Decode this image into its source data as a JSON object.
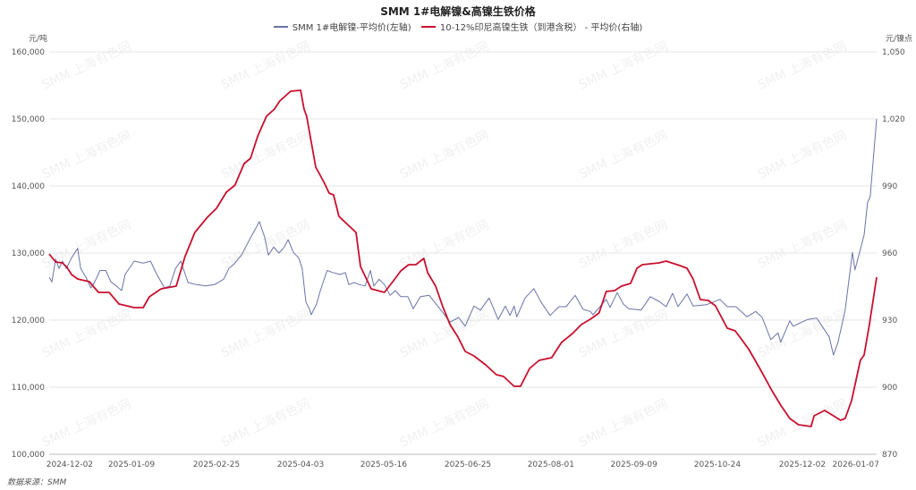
{
  "chart_data": {
    "type": "line",
    "title": "SMM 1#电解镍&高镍生铁价格",
    "source": "数据来源：SMM",
    "watermark": "SMM 上海有色网",
    "y_left": {
      "unit": "元/吨",
      "range": [
        100000,
        160000
      ],
      "ticks": [
        "100,000",
        "110,000",
        "120,000",
        "130,000",
        "140,000",
        "150,000",
        "160,000"
      ]
    },
    "y_right": {
      "unit": "元/镍点",
      "range": [
        870,
        1050
      ],
      "ticks": [
        "870",
        "900",
        "930",
        "960",
        "990",
        "1,020",
        "1,050"
      ]
    },
    "x_range": [
      0,
      218.2
    ],
    "x_ticks": [
      {
        "x": 5.4,
        "label": "2024-12-02"
      },
      {
        "x": 21.7,
        "label": "2025-01-09"
      },
      {
        "x": 44.1,
        "label": "2025-02-25"
      },
      {
        "x": 66.3,
        "label": "2025-04-03"
      },
      {
        "x": 88.2,
        "label": "2025-05-16"
      },
      {
        "x": 110.4,
        "label": "2025-06-25"
      },
      {
        "x": 132.3,
        "label": "2025-08-01"
      },
      {
        "x": 154.2,
        "label": "2025-09-09"
      },
      {
        "x": 176.2,
        "label": "2025-10-24"
      },
      {
        "x": 198.6,
        "label": "2025-12-02"
      },
      {
        "x": 212.7,
        "label": "2026-01-07"
      }
    ],
    "grid": true,
    "legend_position": "top-center",
    "series": [
      {
        "name": "SMM 1#电解镍-平均价(左轴)",
        "axis": "left",
        "color": "#6b72a8",
        "points": [
          [
            0,
            126400
          ],
          [
            0.7,
            125700
          ],
          [
            1.7,
            129100
          ],
          [
            2.6,
            127700
          ],
          [
            3.5,
            128800
          ],
          [
            4.5,
            127700
          ],
          [
            5.9,
            129300
          ],
          [
            7.5,
            130700
          ],
          [
            8.3,
            127700
          ],
          [
            9.7,
            126400
          ],
          [
            11,
            124800
          ],
          [
            12,
            125700
          ],
          [
            13.4,
            127400
          ],
          [
            14.9,
            127400
          ],
          [
            16.3,
            125700
          ],
          [
            17.7,
            125100
          ],
          [
            19.1,
            124400
          ],
          [
            20,
            126800
          ],
          [
            22.4,
            128800
          ],
          [
            24.8,
            128500
          ],
          [
            26.7,
            128800
          ],
          [
            28.5,
            126700
          ],
          [
            30.4,
            124800
          ],
          [
            31.8,
            125100
          ],
          [
            33.3,
            127700
          ],
          [
            34.7,
            128800
          ],
          [
            36.6,
            125600
          ],
          [
            38.9,
            125300
          ],
          [
            41.3,
            125100
          ],
          [
            43.6,
            125300
          ],
          [
            46,
            126100
          ],
          [
            47.4,
            127700
          ],
          [
            48.8,
            128400
          ],
          [
            50.7,
            129700
          ],
          [
            53.1,
            132300
          ],
          [
            54.5,
            133700
          ],
          [
            55.4,
            134700
          ],
          [
            56.8,
            132400
          ],
          [
            57.8,
            129700
          ],
          [
            59.2,
            130900
          ],
          [
            60.6,
            130000
          ],
          [
            62,
            130900
          ],
          [
            63,
            132000
          ],
          [
            64.4,
            130100
          ],
          [
            65.8,
            129300
          ],
          [
            66.7,
            127700
          ],
          [
            67.7,
            122700
          ],
          [
            68.6,
            121700
          ],
          [
            69.1,
            120800
          ],
          [
            70.5,
            122400
          ],
          [
            71.5,
            124400
          ],
          [
            73.3,
            127400
          ],
          [
            74.8,
            127100
          ],
          [
            76.7,
            126800
          ],
          [
            78.1,
            127100
          ],
          [
            79,
            125300
          ],
          [
            80.4,
            125600
          ],
          [
            81.8,
            125300
          ],
          [
            83.3,
            125100
          ],
          [
            84.7,
            127400
          ],
          [
            85.6,
            125100
          ],
          [
            87,
            126100
          ],
          [
            88.4,
            125300
          ],
          [
            89.9,
            123700
          ],
          [
            91.3,
            124400
          ],
          [
            92.7,
            123500
          ],
          [
            94.6,
            123500
          ],
          [
            96,
            121700
          ],
          [
            97.9,
            123500
          ],
          [
            100.2,
            123700
          ],
          [
            103.3,
            121500
          ],
          [
            105.7,
            119700
          ],
          [
            108,
            120400
          ],
          [
            109.7,
            119100
          ],
          [
            112,
            122100
          ],
          [
            113.7,
            121500
          ],
          [
            116,
            123300
          ],
          [
            118.4,
            120100
          ],
          [
            120.3,
            122100
          ],
          [
            121.5,
            120700
          ],
          [
            122.6,
            122100
          ],
          [
            123.3,
            120500
          ],
          [
            125.5,
            123300
          ],
          [
            127.8,
            124700
          ],
          [
            129.7,
            122700
          ],
          [
            132.1,
            120700
          ],
          [
            134.4,
            122000
          ],
          [
            136.3,
            122000
          ],
          [
            138.7,
            123700
          ],
          [
            140.8,
            121600
          ],
          [
            142.7,
            121300
          ],
          [
            143.4,
            120800
          ],
          [
            146.9,
            123100
          ],
          [
            147.9,
            121900
          ],
          [
            149.8,
            124100
          ],
          [
            151.4,
            122400
          ],
          [
            152.8,
            121700
          ],
          [
            156.1,
            121500
          ],
          [
            158.5,
            123500
          ],
          [
            160.8,
            122800
          ],
          [
            162.7,
            122000
          ],
          [
            164.4,
            124000
          ],
          [
            165.8,
            122000
          ],
          [
            168.2,
            123900
          ],
          [
            169.8,
            122100
          ],
          [
            173.3,
            122300
          ],
          [
            176.9,
            123100
          ],
          [
            178.8,
            122000
          ],
          [
            181.1,
            122000
          ],
          [
            184,
            120500
          ],
          [
            186.3,
            121300
          ],
          [
            188,
            120400
          ],
          [
            190.3,
            117100
          ],
          [
            192.2,
            118100
          ],
          [
            192.9,
            116700
          ],
          [
            195.3,
            119900
          ],
          [
            196.2,
            119100
          ],
          [
            200,
            120100
          ],
          [
            202.4,
            120300
          ],
          [
            205.7,
            117500
          ],
          [
            206.8,
            114800
          ],
          [
            208,
            116700
          ],
          [
            209.9,
            121500
          ],
          [
            211.8,
            130100
          ],
          [
            212.5,
            127500
          ],
          [
            214.9,
            132700
          ],
          [
            215.8,
            137500
          ],
          [
            216.5,
            138400
          ],
          [
            218.2,
            150000
          ]
        ]
      },
      {
        "name": "10-12%印尼高镍生铁（到港含税） - 平均价(右轴)",
        "axis": "right",
        "color": "#c8102e",
        "points": [
          [
            0,
            959.6
          ],
          [
            1.7,
            956
          ],
          [
            3.5,
            955.6
          ],
          [
            4.7,
            953.6
          ],
          [
            5.9,
            950.4
          ],
          [
            7.5,
            948.4
          ],
          [
            10.6,
            947.2
          ],
          [
            13,
            942.4
          ],
          [
            15.8,
            942.4
          ],
          [
            18.4,
            937.2
          ],
          [
            22.4,
            935.6
          ],
          [
            24.8,
            935.6
          ],
          [
            26.4,
            940.4
          ],
          [
            29.5,
            944
          ],
          [
            33.5,
            945.2
          ],
          [
            35.8,
            958.4
          ],
          [
            38.4,
            969.2
          ],
          [
            41.7,
            976
          ],
          [
            44.1,
            980
          ],
          [
            46.7,
            987.2
          ],
          [
            49,
            990.4
          ],
          [
            51.4,
            1000
          ],
          [
            53.1,
            1002.4
          ],
          [
            55,
            1012.4
          ],
          [
            57.3,
            1021.2
          ],
          [
            59.4,
            1024.4
          ],
          [
            60.8,
            1028
          ],
          [
            63.7,
            1032.4
          ],
          [
            66.3,
            1032.8
          ],
          [
            67.2,
            1024.4
          ],
          [
            67.9,
            1021.2
          ],
          [
            70.3,
            998.4
          ],
          [
            72.6,
            991.2
          ],
          [
            73.8,
            986.8
          ],
          [
            75,
            986
          ],
          [
            76.4,
            976.4
          ],
          [
            80.9,
            969.2
          ],
          [
            82.1,
            954
          ],
          [
            84.9,
            944
          ],
          [
            88.4,
            942.4
          ],
          [
            90.8,
            947.6
          ],
          [
            92.7,
            952
          ],
          [
            94.8,
            954.8
          ],
          [
            96.7,
            954.8
          ],
          [
            98.8,
            957.6
          ],
          [
            99.8,
            951.2
          ],
          [
            101.9,
            945.2
          ],
          [
            103.8,
            936
          ],
          [
            105.7,
            928
          ],
          [
            107.8,
            922.4
          ],
          [
            109.7,
            916
          ],
          [
            112,
            914
          ],
          [
            115.1,
            910
          ],
          [
            117.9,
            905.6
          ],
          [
            119.8,
            904.8
          ],
          [
            122.6,
            900.4
          ],
          [
            124.3,
            900.4
          ],
          [
            126.7,
            908.4
          ],
          [
            129.2,
            912
          ],
          [
            132.5,
            913.2
          ],
          [
            135.1,
            920
          ],
          [
            138,
            924
          ],
          [
            140.3,
            928
          ],
          [
            142.7,
            930.4
          ],
          [
            145,
            933.2
          ],
          [
            146.9,
            942.8
          ],
          [
            149.1,
            943.2
          ],
          [
            150.9,
            945.2
          ],
          [
            153.3,
            946.4
          ],
          [
            155,
            953.2
          ],
          [
            156.4,
            954.8
          ],
          [
            160.8,
            955.6
          ],
          [
            162.7,
            956.4
          ],
          [
            166.3,
            954.4
          ],
          [
            168.2,
            953.2
          ],
          [
            169.8,
            948.4
          ],
          [
            171.7,
            939.2
          ],
          [
            173.8,
            938.8
          ],
          [
            175.7,
            936.4
          ],
          [
            178.8,
            926.4
          ],
          [
            180.9,
            925.2
          ],
          [
            184.4,
            917.2
          ],
          [
            187.5,
            908
          ],
          [
            190.6,
            898.4
          ],
          [
            192.9,
            892
          ],
          [
            195.3,
            886
          ],
          [
            197.6,
            883.2
          ],
          [
            200.9,
            882.4
          ],
          [
            201.7,
            887.2
          ],
          [
            204.5,
            889.6
          ],
          [
            206.8,
            887.2
          ],
          [
            208.7,
            885.2
          ],
          [
            209.9,
            886
          ],
          [
            211.6,
            894
          ],
          [
            213.9,
            912
          ],
          [
            214.9,
            914.4
          ],
          [
            216.3,
            928
          ],
          [
            218.2,
            949.2
          ]
        ]
      }
    ]
  }
}
